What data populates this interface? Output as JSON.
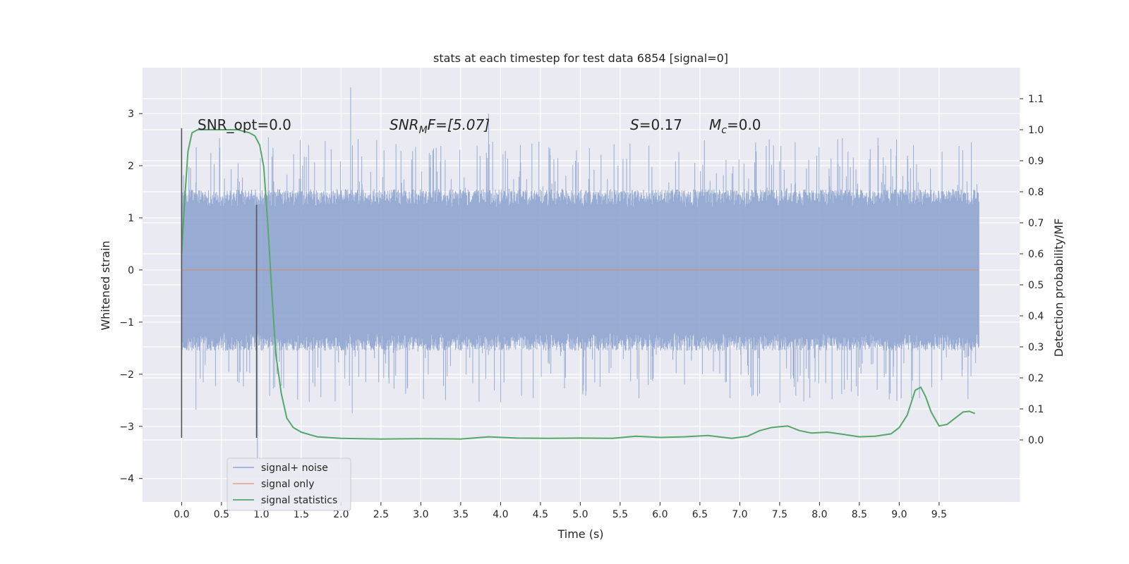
{
  "chart_data": {
    "type": "line",
    "title": "stats at each timestep for test data 6854 [signal=0]",
    "xlabel": "Time (s)",
    "ylabel": "Whitened strain",
    "ylabel_right": "Detection probability/MF",
    "xlim": [
      -0.49,
      10.51
    ],
    "ylim": [
      -4.45,
      3.88
    ],
    "ylim_right": [
      -0.2,
      1.2
    ],
    "x_ticks": [
      "0.0",
      "0.5",
      "1.0",
      "1.5",
      "2.0",
      "2.5",
      "3.0",
      "3.5",
      "4.0",
      "4.5",
      "5.0",
      "5.5",
      "6.0",
      "6.5",
      "7.0",
      "7.5",
      "8.0",
      "8.5",
      "9.0",
      "9.5"
    ],
    "y_ticks": [
      -4,
      -3,
      -2,
      -1,
      0,
      1,
      2,
      3
    ],
    "y_ticks_right": [
      "0.0",
      "0.1",
      "0.2",
      "0.3",
      "0.4",
      "0.5",
      "0.6",
      "0.7",
      "0.8",
      "0.9",
      "1.0",
      "1.1"
    ],
    "grid": true,
    "legend_position": "lower-left",
    "annotations": {
      "snr_opt": "SNR_opt=0.0",
      "snr_mf_base": "SNR",
      "snr_mf_sub": "M",
      "snr_mf_rest": "F=[5.07]",
      "s_stat_var": "S",
      "s_stat_rest": "=0.17",
      "mc_var": "M",
      "mc_sub": "c",
      "mc_rest": "=0.0"
    },
    "markers": [
      {
        "x": 0.0,
        "y": [
          -3.22,
          2.72
        ]
      },
      {
        "x": 0.94,
        "y": [
          -3.22,
          1.25
        ]
      }
    ],
    "series": [
      {
        "name": "signal+ noise",
        "color": "#8fa5cf",
        "x_range": [
          0.0,
          10.0
        ],
        "y_bulk": [
          -1.55,
          1.55
        ],
        "y_extremes": [
          -3.6,
          3.5
        ]
      },
      {
        "name": "signal only",
        "color": "#dd8452",
        "x": [
          0.0,
          10.0
        ],
        "y": [
          0.0,
          0.0
        ]
      },
      {
        "name": "signal statistics",
        "color": "#55a868",
        "axis": "right",
        "x": [
          0.0,
          0.04,
          0.08,
          0.13,
          0.2,
          0.3,
          0.5,
          0.7,
          0.85,
          0.92,
          0.98,
          1.03,
          1.08,
          1.13,
          1.18,
          1.25,
          1.32,
          1.4,
          1.5,
          1.7,
          2.0,
          2.5,
          3.0,
          3.5,
          3.85,
          4.2,
          4.6,
          5.0,
          5.4,
          5.7,
          6.0,
          6.3,
          6.6,
          6.9,
          7.1,
          7.25,
          7.4,
          7.6,
          7.75,
          7.9,
          8.1,
          8.3,
          8.5,
          8.7,
          8.9,
          9.0,
          9.1,
          9.2,
          9.27,
          9.33,
          9.4,
          9.5,
          9.6,
          9.7,
          9.8,
          9.88,
          9.95
        ],
        "y": [
          0.6,
          0.78,
          0.93,
          0.99,
          1.0,
          1.0,
          1.0,
          1.0,
          0.99,
          0.98,
          0.95,
          0.88,
          0.7,
          0.48,
          0.28,
          0.15,
          0.07,
          0.04,
          0.025,
          0.01,
          0.005,
          0.003,
          0.004,
          0.003,
          0.01,
          0.006,
          0.005,
          0.006,
          0.005,
          0.012,
          0.008,
          0.01,
          0.014,
          0.005,
          0.012,
          0.03,
          0.04,
          0.045,
          0.03,
          0.022,
          0.025,
          0.018,
          0.01,
          0.012,
          0.02,
          0.04,
          0.08,
          0.16,
          0.17,
          0.14,
          0.09,
          0.045,
          0.05,
          0.07,
          0.09,
          0.092,
          0.085
        ]
      }
    ]
  }
}
